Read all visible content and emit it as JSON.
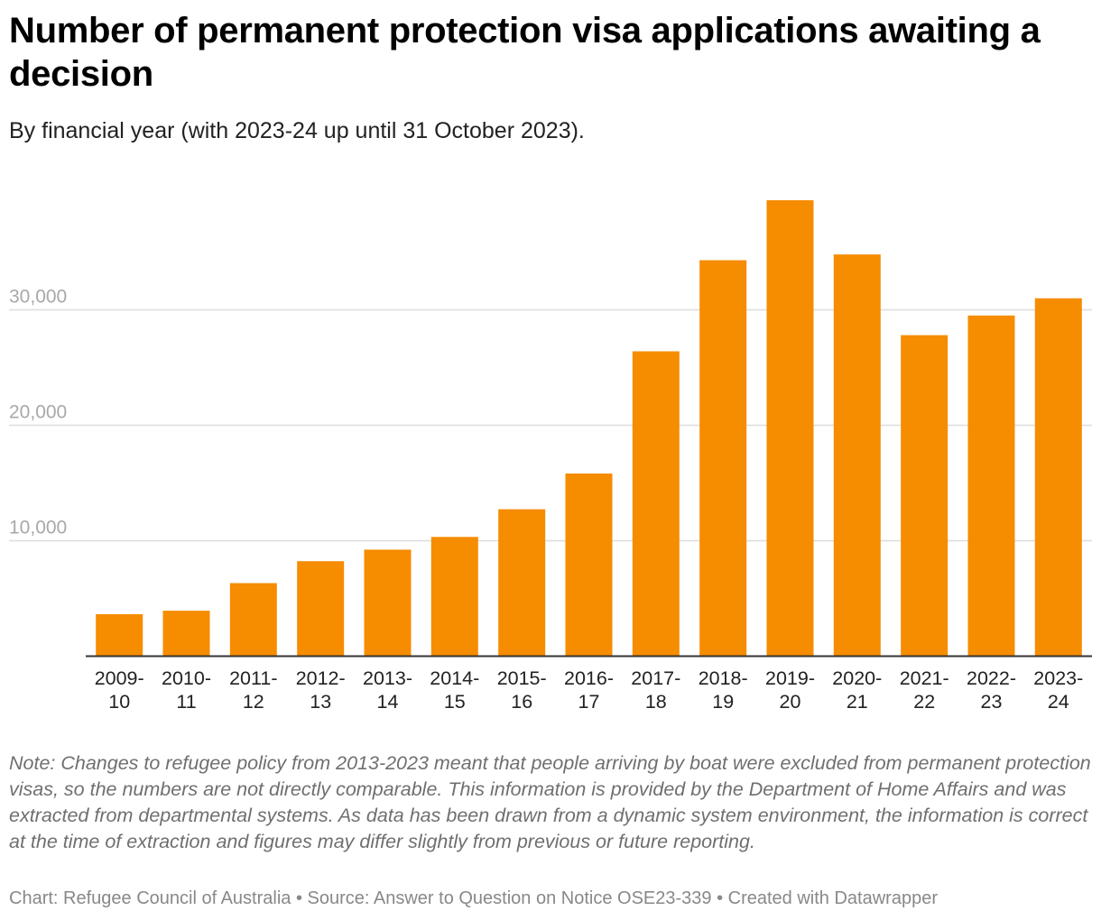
{
  "header": {
    "title": "Number of permanent protection visa applications awaiting a decision",
    "subtitle": "By financial year (with 2023-24 up until 31 October 2023)."
  },
  "chart_data": {
    "type": "bar",
    "title": "Number of permanent protection visa applications awaiting a decision",
    "subtitle": "By financial year (with 2023-24 up until 31 October 2023).",
    "xlabel": "",
    "ylabel": "",
    "categories": [
      [
        "2009-",
        "10"
      ],
      [
        "2010-",
        "11"
      ],
      [
        "2011-",
        "12"
      ],
      [
        "2012-",
        "13"
      ],
      [
        "2013-",
        "14"
      ],
      [
        "2014-",
        "15"
      ],
      [
        "2015-",
        "16"
      ],
      [
        "2016-",
        "17"
      ],
      [
        "2017-",
        "18"
      ],
      [
        "2018-",
        "19"
      ],
      [
        "2019-",
        "20"
      ],
      [
        "2020-",
        "21"
      ],
      [
        "2021-",
        "22"
      ],
      [
        "2022-",
        "23"
      ],
      [
        "2023-",
        "24"
      ]
    ],
    "values": [
      3600,
      3900,
      6300,
      8200,
      9200,
      10300,
      12700,
      15800,
      26400,
      34300,
      39500,
      34800,
      27800,
      29500,
      31000
    ],
    "ylim": [
      0,
      39500
    ],
    "yticks": [
      10000,
      20000,
      30000
    ],
    "ytick_labels": [
      "10,000",
      "20,000",
      "30,000"
    ],
    "grid": true,
    "legend": "none",
    "bar_color": "#f68c00"
  },
  "note": "Note: Changes to refugee policy from 2013-2023 meant that people arriving by boat were excluded from permanent protection visas, so the numbers are not directly comparable. This information is provided by the Department of Home Affairs and was extracted from departmental systems. As data has been drawn from a dynamic system environment, the information is correct at the time of extraction and figures may differ slightly from previous or future reporting.",
  "footer": "Chart: Refugee Council of Australia • Source: Answer to Question on Notice OSE23-339 • Created with Datawrapper"
}
